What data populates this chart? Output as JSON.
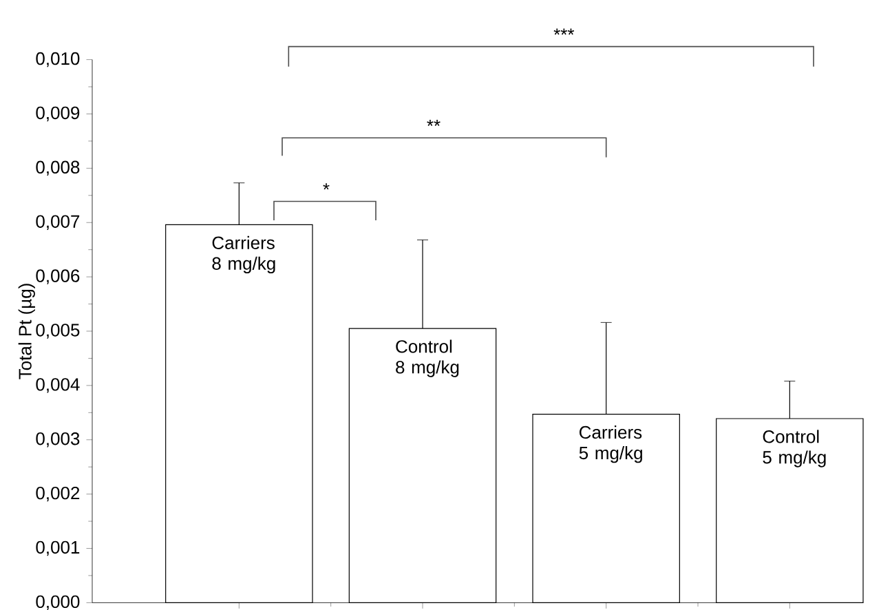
{
  "chart_data": {
    "type": "bar",
    "ylabel": "Total Pt (µg)",
    "categories": [
      "Carriers 8 mg/kg",
      "Control 8 mg/kg",
      "Carriers 5 mg/kg",
      "Control 5 mg/kg"
    ],
    "values": [
      0.00696,
      0.00505,
      0.00347,
      0.00339
    ],
    "errors": [
      [
        0.00696,
        0.00773
      ],
      [
        0.00505,
        0.00668
      ],
      [
        0.00347,
        0.00516
      ],
      [
        0.00339,
        0.00408
      ]
    ],
    "color": "#ffffff",
    "ylim": [
      0,
      0.01
    ],
    "yticks": [
      {
        "value": 0,
        "label": "0,000"
      },
      {
        "value": 0.001,
        "label": "0,001"
      },
      {
        "value": 0.002,
        "label": "0,002"
      },
      {
        "value": 0.003,
        "label": "0,003"
      },
      {
        "value": 0.004,
        "label": "0,004"
      },
      {
        "value": 0.005,
        "label": "0,005"
      },
      {
        "value": 0.006,
        "label": "0,006"
      },
      {
        "value": 0.007,
        "label": "0,007"
      },
      {
        "value": 0.008,
        "label": "0,008"
      },
      {
        "value": 0.009,
        "label": "0,009"
      },
      {
        "value": 0.01,
        "label": "0,010"
      }
    ],
    "tick_labels": "y",
    "annotations": [
      "*",
      "**",
      "***"
    ]
  }
}
